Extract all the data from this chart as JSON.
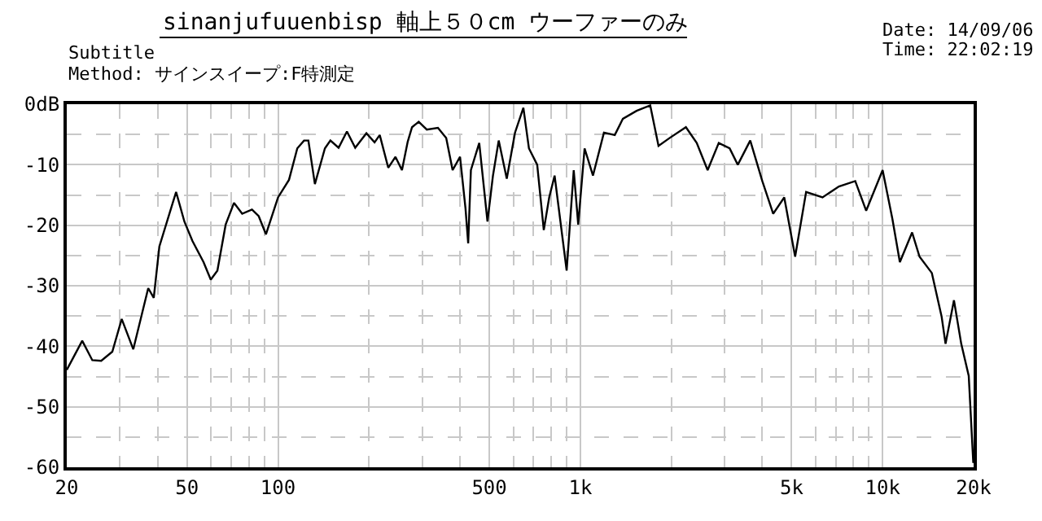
{
  "chart_data": {
    "type": "line",
    "title": "sinanjufuuenbisp 軸上５０cm ウーファーのみ",
    "subtitle": "Subtitle",
    "annotations": [
      "Method: サインスイープ:F特測定",
      "Date: 14/09/06",
      "Time: 22:02:19"
    ],
    "log": "x",
    "grid": true,
    "marker": "none",
    "line_style": "solid",
    "xlim": [
      20,
      20000
    ],
    "xticks": [
      20,
      50,
      100,
      500,
      {
        "value": 1000,
        "label": "1k"
      },
      {
        "value": 5000,
        "label": "5k"
      },
      {
        "value": 10000,
        "label": "10k"
      },
      {
        "value": 20000,
        "label": "20k"
      }
    ],
    "ylim": [
      -60,
      0
    ],
    "yticks": [
      {
        "value": 0,
        "label": "0dB"
      },
      -10,
      -20,
      -30,
      -40,
      -50,
      -60
    ],
    "series": [
      {
        "color": "#000000",
        "x": [
          20,
          22.5,
          24.3,
          26,
          28.3,
          30.4,
          33.2,
          37.2,
          38.8,
          40.5,
          46,
          49,
          52.1,
          56.7,
          59.9,
          63,
          67.1,
          71.5,
          76.1,
          82,
          86.3,
          91.2,
          100,
          108.7,
          115.8,
          121.9,
          126,
          132.4,
          142.9,
          149,
          158.6,
          169,
          180,
          196,
          208.6,
          217,
          231.5,
          244.6,
          257,
          268.5,
          277.5,
          292,
          310.5,
          338,
          360,
          378,
          400,
          417,
          425.6,
          434.5,
          463,
          493,
          514,
          537,
          571,
          608,
          648,
          676,
          720,
          757,
          789,
          822,
          901,
          951,
          984,
          1033,
          1101,
          1197,
          1300,
          1383,
          1535,
          1703,
          1814,
          1972,
          2235,
          2427,
          2637,
          2870,
          3118,
          3318,
          3648,
          3999,
          4345,
          4727,
          5136,
          5584,
          6327,
          7169,
          8117,
          8823,
          10000,
          10777,
          11404,
          12520,
          13245,
          14550,
          15675,
          16150,
          17220,
          18200,
          19270,
          19950
        ],
        "values": [
          -43.9,
          -39.1,
          -42.3,
          -42.4,
          -40.9,
          -35.5,
          -40.5,
          -30.4,
          -32,
          -23.5,
          -14.5,
          -19.4,
          -22.6,
          -26.1,
          -29,
          -27.5,
          -19.9,
          -16.3,
          -18.1,
          -17.4,
          -18.5,
          -21.5,
          -15.4,
          -12.5,
          -7.3,
          -6,
          -6,
          -13.2,
          -7.3,
          -6,
          -7.2,
          -4.5,
          -7.2,
          -4.8,
          -6.3,
          -5.1,
          -10.5,
          -8.7,
          -10.9,
          -6.2,
          -3.8,
          -2.9,
          -4.2,
          -3.9,
          -5.6,
          -10.9,
          -8.7,
          -17.2,
          -23,
          -10.9,
          -6.4,
          -19.4,
          -11.8,
          -6,
          -12.3,
          -4.7,
          -0.6,
          -7.3,
          -10,
          -20.8,
          -15.4,
          -11.8,
          -27.5,
          -10.9,
          -19.9,
          -7.3,
          -11.8,
          -4.7,
          -5.1,
          -2.4,
          -1.1,
          -0.2,
          -6.9,
          -5.6,
          -3.8,
          -6.4,
          -10.9,
          -6.4,
          -7.3,
          -10,
          -6,
          -12.7,
          -18.1,
          -15.4,
          -25.2,
          -14.5,
          -15.4,
          -13.6,
          -12.7,
          -17.6,
          -10.9,
          -19,
          -26.1,
          -21.2,
          -25.2,
          -27.9,
          -35.1,
          -39.6,
          -32.4,
          -39.6,
          -44.9,
          -59.3
        ]
      }
    ]
  }
}
